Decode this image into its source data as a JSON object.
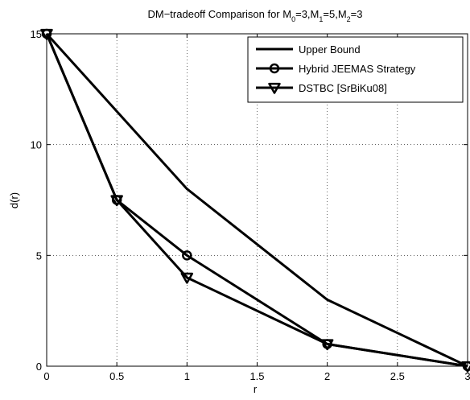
{
  "chart_data": {
    "type": "line",
    "title_parts": [
      "DM−tradeoff Comparison for M",
      "0",
      "=3,M",
      "1",
      "=5,M",
      "2",
      "=3"
    ],
    "xlabel": "r",
    "ylabel": "d(r)",
    "xlim": [
      0,
      3
    ],
    "ylim": [
      0,
      15
    ],
    "xticks": [
      0,
      0.5,
      1,
      1.5,
      2,
      2.5,
      3
    ],
    "xtick_labels": [
      "0",
      "0.5",
      "1",
      "1.5",
      "2",
      "2.5",
      "3"
    ],
    "yticks": [
      0,
      5,
      10,
      15
    ],
    "ytick_labels": [
      "0",
      "5",
      "10",
      "15"
    ],
    "grid": true,
    "legend_position": "top-right",
    "series": [
      {
        "name": "Upper Bound",
        "marker": "none",
        "x": [
          0,
          1,
          2,
          3
        ],
        "y": [
          15,
          8,
          3,
          0
        ]
      },
      {
        "name": "Hybrid JEEMAS Strategy",
        "marker": "circle",
        "x": [
          0,
          0.5,
          1,
          2,
          3
        ],
        "y": [
          15,
          7.5,
          5,
          1,
          0
        ]
      },
      {
        "name": "DSTBC [SrBiKu08]",
        "marker": "triangle-down",
        "x": [
          0,
          0.5,
          1,
          2,
          3
        ],
        "y": [
          15,
          7.5,
          4,
          1,
          0
        ]
      }
    ]
  }
}
